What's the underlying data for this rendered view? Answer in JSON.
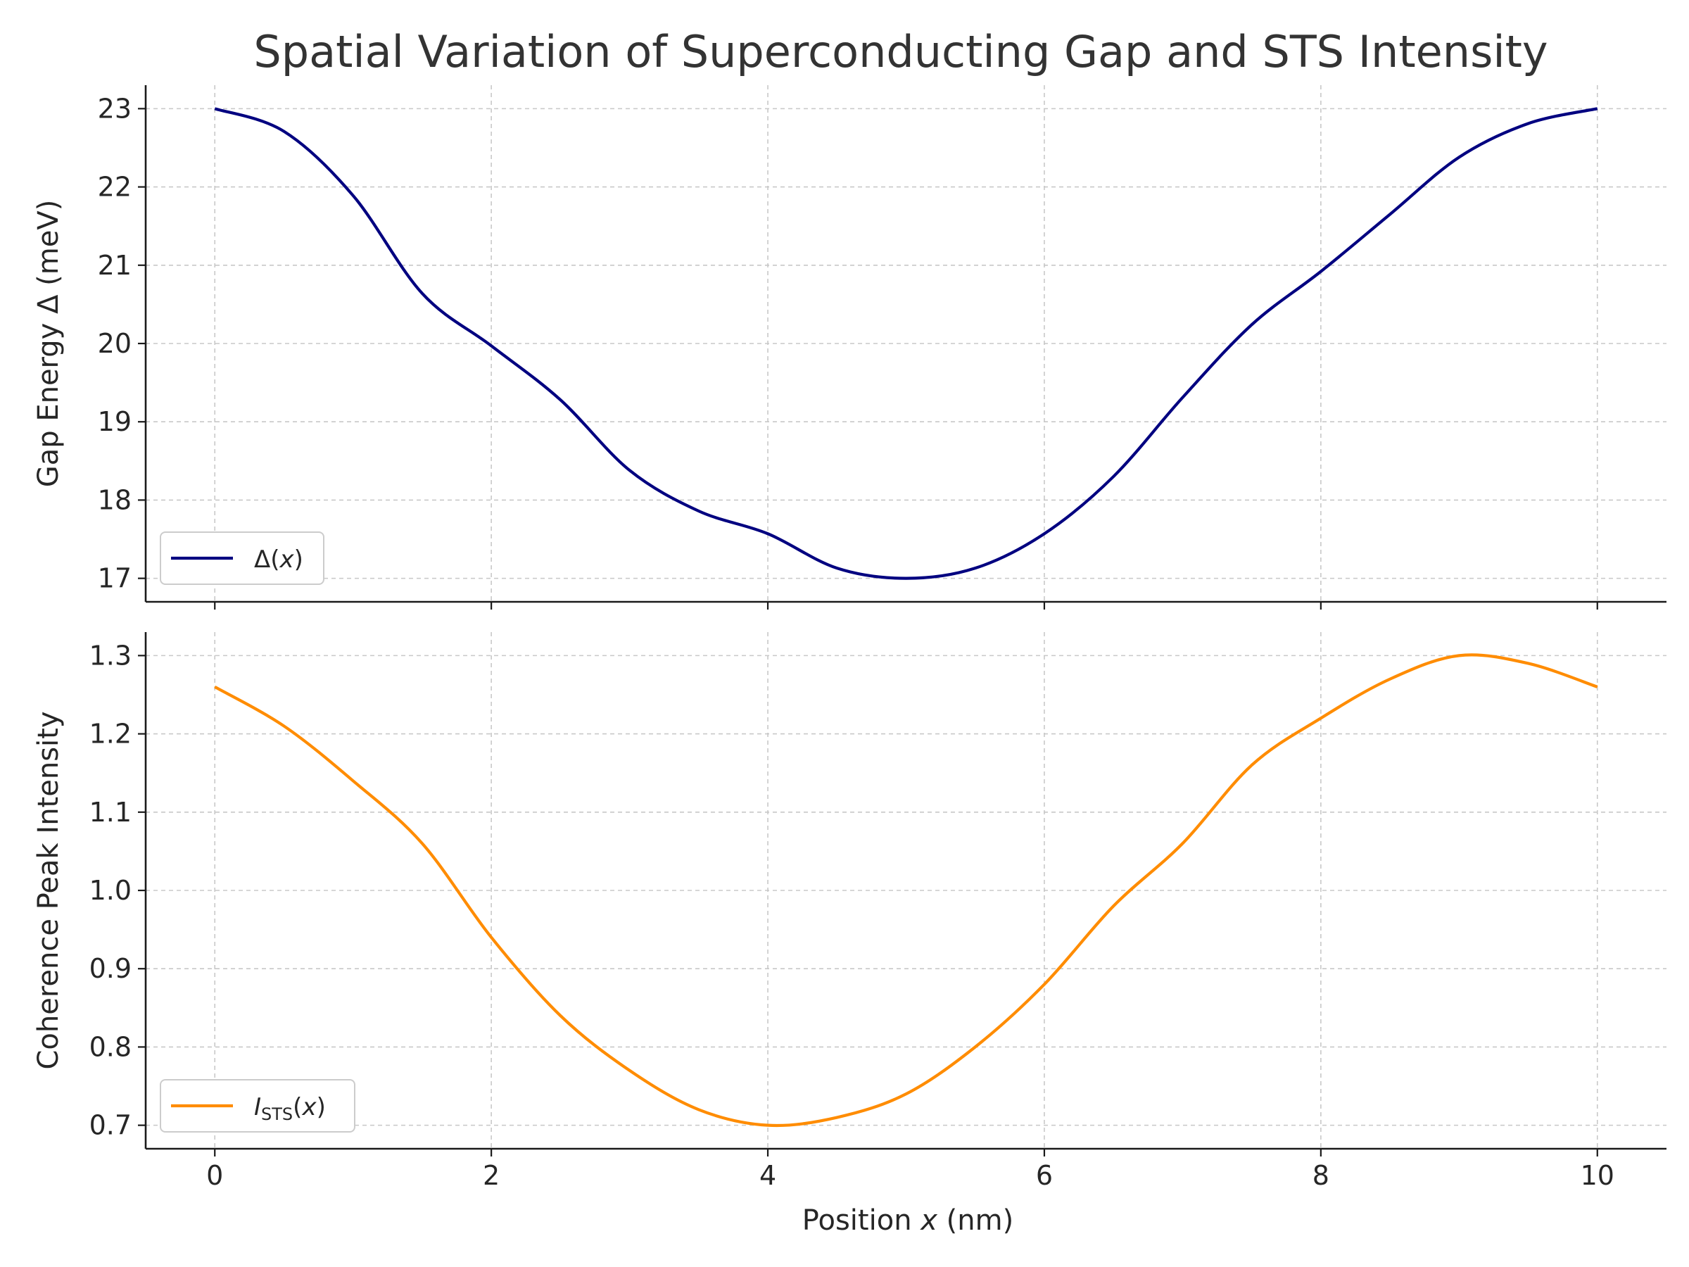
{
  "chart_data": {
    "title": "Spatial Variation of Superconducting Gap and STS Intensity",
    "xlabel_prefix": "Position ",
    "xlabel_var": "x",
    "xlabel_suffix": " (nm)",
    "xlim": [
      -0.5,
      10.5
    ],
    "xticks": [
      "0",
      "2",
      "4",
      "6",
      "8",
      "10"
    ],
    "x": [
      0,
      0.5,
      1,
      1.5,
      2,
      2.5,
      3,
      3.5,
      4,
      4.5,
      5,
      5.5,
      6,
      6.5,
      7,
      7.5,
      8,
      8.5,
      9,
      9.5,
      10
    ],
    "panels": [
      {
        "type": "line",
        "ylabel": "Gap Energy Δ (meV)",
        "ylim": [
          16.7,
          23.3
        ],
        "yticks": [
          "17",
          "18",
          "19",
          "20",
          "21",
          "22",
          "23"
        ],
        "series": [
          {
            "name": "Δ(x)",
            "legend_main": "Δ(",
            "legend_var": "x",
            "legend_end": ")",
            "color": "#000080",
            "values": [
              23.0,
              22.71,
              21.89,
              20.64,
              19.97,
              19.28,
              18.38,
              17.86,
              17.57,
              17.13,
              17.0,
              17.13,
              17.57,
              18.3,
              19.31,
              20.24,
              20.92,
              21.65,
              22.38,
              22.81,
              23.0
            ]
          }
        ],
        "grid": true,
        "legend_position": "lower-left"
      },
      {
        "type": "line",
        "ylabel": "Coherence Peak Intensity",
        "ylim": [
          0.67,
          1.33
        ],
        "yticks": [
          "0.7",
          "0.8",
          "0.9",
          "1.0",
          "1.1",
          "1.2",
          "1.3"
        ],
        "series": [
          {
            "name": "I_STS(x)",
            "legend_main": "I",
            "legend_sub": "STS",
            "legend_var": "x",
            "color": "#ff8c00",
            "values": [
              1.26,
              1.21,
              1.14,
              1.06,
              0.94,
              0.84,
              0.77,
              0.72,
              0.7,
              0.71,
              0.74,
              0.8,
              0.88,
              0.98,
              1.06,
              1.16,
              1.22,
              1.27,
              1.3,
              1.29,
              1.26
            ]
          }
        ],
        "grid": true,
        "legend_position": "lower-left"
      }
    ]
  }
}
